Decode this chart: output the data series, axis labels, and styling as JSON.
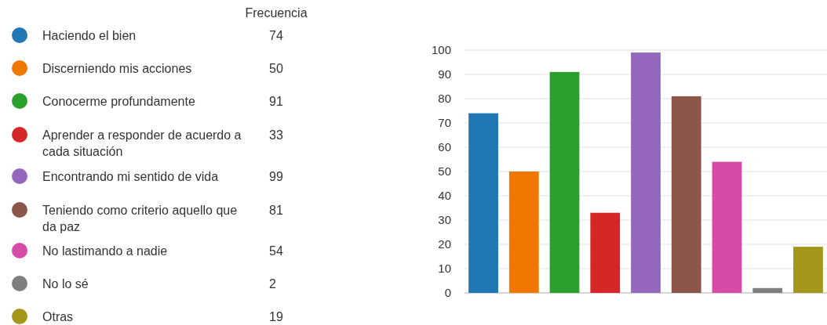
{
  "chart_data": {
    "type": "bar",
    "legend_title": "Frecuencia",
    "stacked": true,
    "categories": [
      null,
      null,
      null,
      null,
      null,
      null,
      null,
      null,
      null
    ],
    "series": [
      {
        "name": "Haciendo el bien",
        "color": "#1f77b4",
        "values": [
          74,
          null,
          null,
          null,
          null,
          null,
          null,
          null,
          null
        ]
      },
      {
        "name": "Discerniendo mis acciones",
        "color": "#f07800",
        "values": [
          null,
          50,
          null,
          null,
          null,
          null,
          null,
          null,
          null
        ]
      },
      {
        "name": "Conocerme profundamente",
        "color": "#2ca02c",
        "values": [
          null,
          null,
          91,
          null,
          null,
          null,
          null,
          null,
          null
        ]
      },
      {
        "name": "Aprender a responder de acuerdo a cada situación",
        "color": "#d62728",
        "values": [
          null,
          null,
          null,
          33,
          null,
          null,
          null,
          null,
          null
        ]
      },
      {
        "name": "Encontrando mi sentido de vida",
        "color": "#9467bd",
        "values": [
          null,
          null,
          null,
          null,
          99,
          null,
          null,
          null,
          null
        ]
      },
      {
        "name": "Teniendo como criterio aquello que da paz",
        "color": "#8c564b",
        "values": [
          null,
          null,
          null,
          null,
          null,
          81,
          null,
          null,
          null
        ]
      },
      {
        "name": "No lastimando a nadie",
        "color": "#d64ba8",
        "values": [
          null,
          null,
          null,
          null,
          null,
          null,
          54,
          null,
          null
        ]
      },
      {
        "name": "No lo sé",
        "color": "#7f7f7f",
        "values": [
          null,
          null,
          null,
          null,
          null,
          null,
          null,
          2,
          null
        ]
      },
      {
        "name": "Otras",
        "color": "#a4961a",
        "values": [
          null,
          null,
          null,
          null,
          null,
          null,
          null,
          null,
          19
        ]
      }
    ],
    "ylim": [
      0,
      100
    ],
    "yticks": [
      0,
      10,
      20,
      30,
      40,
      50,
      60,
      70,
      80,
      90,
      100
    ],
    "grid": "y",
    "legend": "left",
    "tick_labels": "y",
    "annotations": [
      "74",
      "50",
      "91",
      "33",
      "99",
      "81",
      "54",
      "2",
      "19"
    ]
  }
}
